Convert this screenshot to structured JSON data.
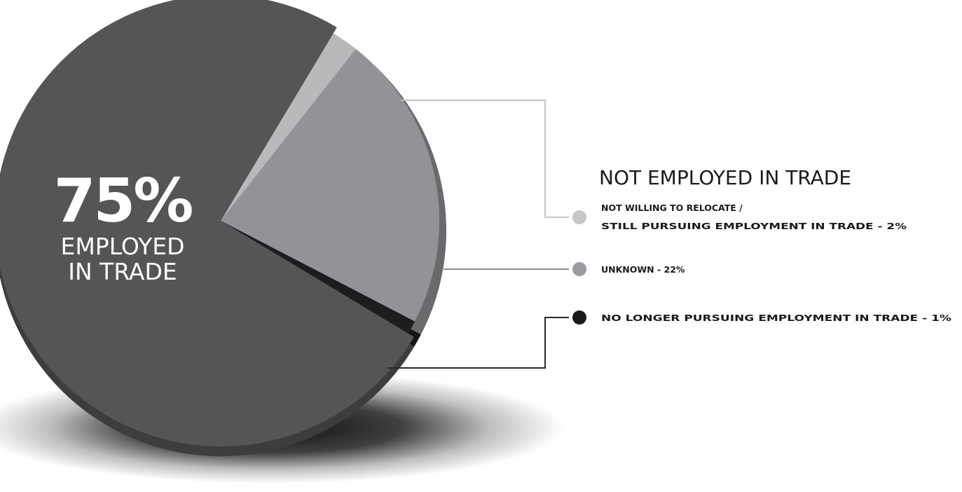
{
  "chart_data": {
    "type": "pie",
    "slices": [
      {
        "label": "EMPLOYED IN TRADE",
        "value": 75,
        "display": "75%",
        "color": "#555558"
      },
      {
        "label": "NOT WILLING TO RELOCATE / STILL PURSUING EMPLOYMENT IN TRADE - 2%",
        "value": 2,
        "color": "#b9b9bc"
      },
      {
        "label": "UNKNOWN - 22%",
        "value": 22,
        "color": "#929396"
      },
      {
        "label": "NO LONGER PURSUING EMPLOYMENT IN TRADE - 1%",
        "value": 1,
        "color": "#1d1d1f"
      }
    ],
    "main_label": {
      "value": "75%",
      "line1": "EMPLOYED",
      "line2": "IN TRADE"
    },
    "legend": {
      "title": "NOT EMPLOYED IN TRADE",
      "placement": "right",
      "items": [
        {
          "line1": "NOT WILLING TO RELOCATE /",
          "line2": "STILL PURSUING EMPLOYMENT IN TRADE - 2%",
          "color": "#c7c7c9"
        },
        {
          "line1": "UNKNOWN - 22%",
          "line2": "",
          "color": "#9a9b9e"
        },
        {
          "line1": "NO LONGER PURSUING EMPLOYMENT IN TRADE - 1%",
          "line2": "",
          "color": "#1a1a1a"
        }
      ]
    }
  }
}
